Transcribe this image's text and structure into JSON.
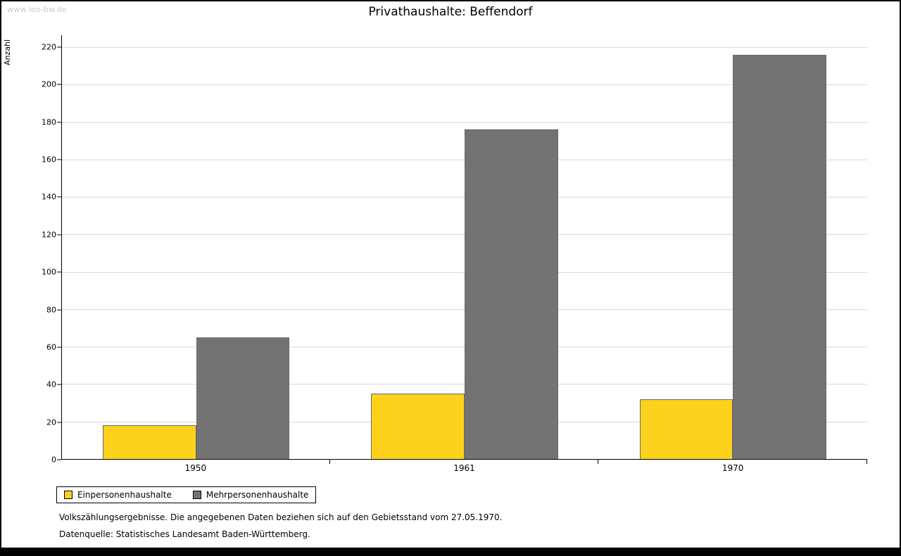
{
  "watermark": "www.leo-bw.de",
  "title": "Privathaushalte: Beffendorf",
  "ylabel": "Anzahl",
  "footnote1": "Volkszählungsergebnisse. Die angegebenen Daten beziehen sich auf den Gebietsstand vom 27.05.1970.",
  "footnote2": "Datenquelle: Statistisches Landesamt Baden-Württemberg.",
  "colors": {
    "series1": "#fcd21c",
    "series2": "#737373",
    "grid": "#d9d9d9",
    "axis": "#000000",
    "watermark": "#c9c9c9"
  },
  "chart_data": {
    "type": "bar",
    "title": "Privathaushalte: Beffendorf",
    "xlabel": "",
    "ylabel": "Anzahl",
    "categories": [
      "1950",
      "1961",
      "1970"
    ],
    "series": [
      {
        "name": "Einpersonenhaushalte",
        "color": "#fcd21c",
        "values": [
          18,
          35,
          32
        ]
      },
      {
        "name": "Mehrpersonenhaushalte",
        "color": "#737373",
        "values": [
          65,
          176,
          216
        ]
      }
    ],
    "ylim": [
      0,
      220
    ],
    "ytick_step": 20,
    "grid": true,
    "legend_position": "bottom-left"
  }
}
